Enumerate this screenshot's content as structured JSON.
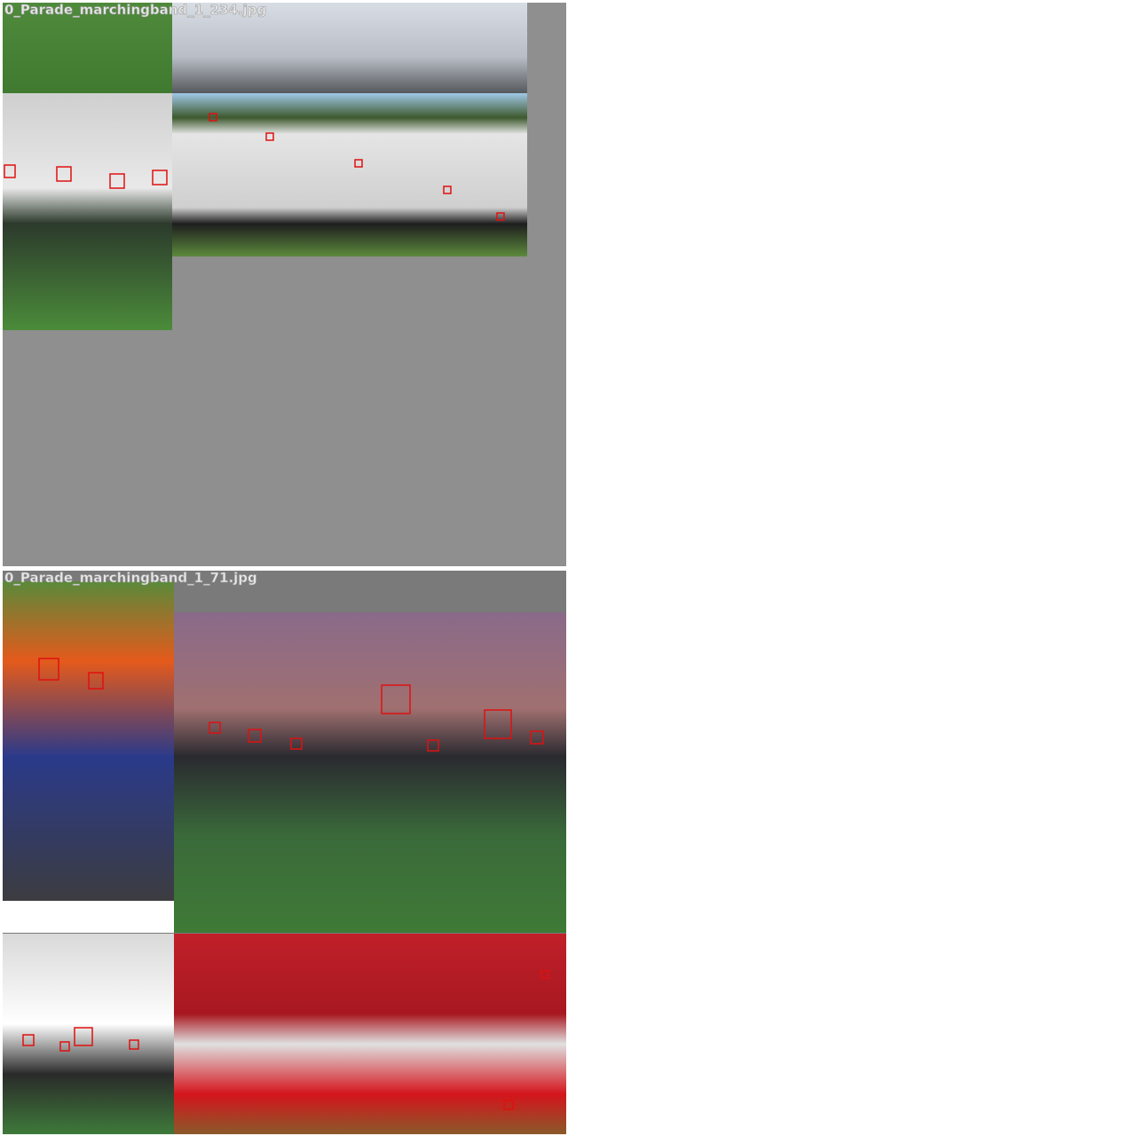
{
  "mosaics": [
    {
      "label": "0_Parade_marchingband_1_234.jpg"
    },
    {
      "label": "0_Parade_marchingband_1_71.jpg"
    }
  ]
}
